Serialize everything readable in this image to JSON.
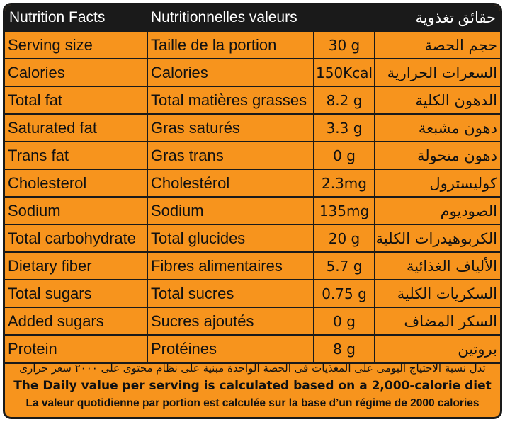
{
  "header": {
    "en": "Nutrition Facts",
    "fr": "Nutritionnelles valeurs",
    "ar": "حقائق تغذوية"
  },
  "rows": [
    {
      "en": "Serving size",
      "fr": "Taille de la portion",
      "value": "30 g",
      "ar": "حجم الحصة"
    },
    {
      "en": "Calories",
      "fr": "Calories",
      "value": "150Kcal",
      "ar": "السعرات الحرارية"
    },
    {
      "en": "Total fat",
      "fr": "Total matières grasses",
      "value": "8.2 g",
      "ar": "الدهون الكلية"
    },
    {
      "en": "Saturated fat",
      "fr": "Gras saturés",
      "value": "3.3 g",
      "ar": "دهون مشبعة"
    },
    {
      "en": "Trans fat",
      "fr": "Gras trans",
      "value": "0 g",
      "ar": "دهون متحولة"
    },
    {
      "en": "Cholesterol",
      "fr": "Cholestérol",
      "value": "2.3mg",
      "ar": "كوليسترول"
    },
    {
      "en": "Sodium",
      "fr": "Sodium",
      "value": "135mg",
      "ar": "الصوديوم"
    },
    {
      "en": "Total carbohydrate",
      "fr": "Total glucides",
      "value": "20 g",
      "ar": "الكربوهيدرات الكلية"
    },
    {
      "en": "Dietary fiber",
      "fr": "Fibres alimentaires",
      "value": "5.7 g",
      "ar": "الألياف الغذائية"
    },
    {
      "en": "Total sugars",
      "fr": "Total sucres",
      "value": "0.75 g",
      "ar": "السكريات الكلية"
    },
    {
      "en": "Added sugars",
      "fr": "Sucres ajoutés",
      "value": "0 g",
      "ar": "السكر المضاف"
    },
    {
      "en": "Protein",
      "fr": "Protéines",
      "value": "8 g",
      "ar": "بروتين"
    }
  ],
  "footer": {
    "ar": "تدل نسبة الاحتياج اليومى على المغذيات فى الحصة الواحدة مبنية على نظام محتوى على ٢٠٠٠ سعر حرارى",
    "en": "The Daily value per serving is calculated based on a 2,000-calorie diet",
    "fr": "La valeur quotidienne par portion est calculée sur la base d’un régime de 2000 calories"
  },
  "colors": {
    "background": "#f7941d",
    "header": "#1a1a1a",
    "header_text": "#ffffff"
  }
}
